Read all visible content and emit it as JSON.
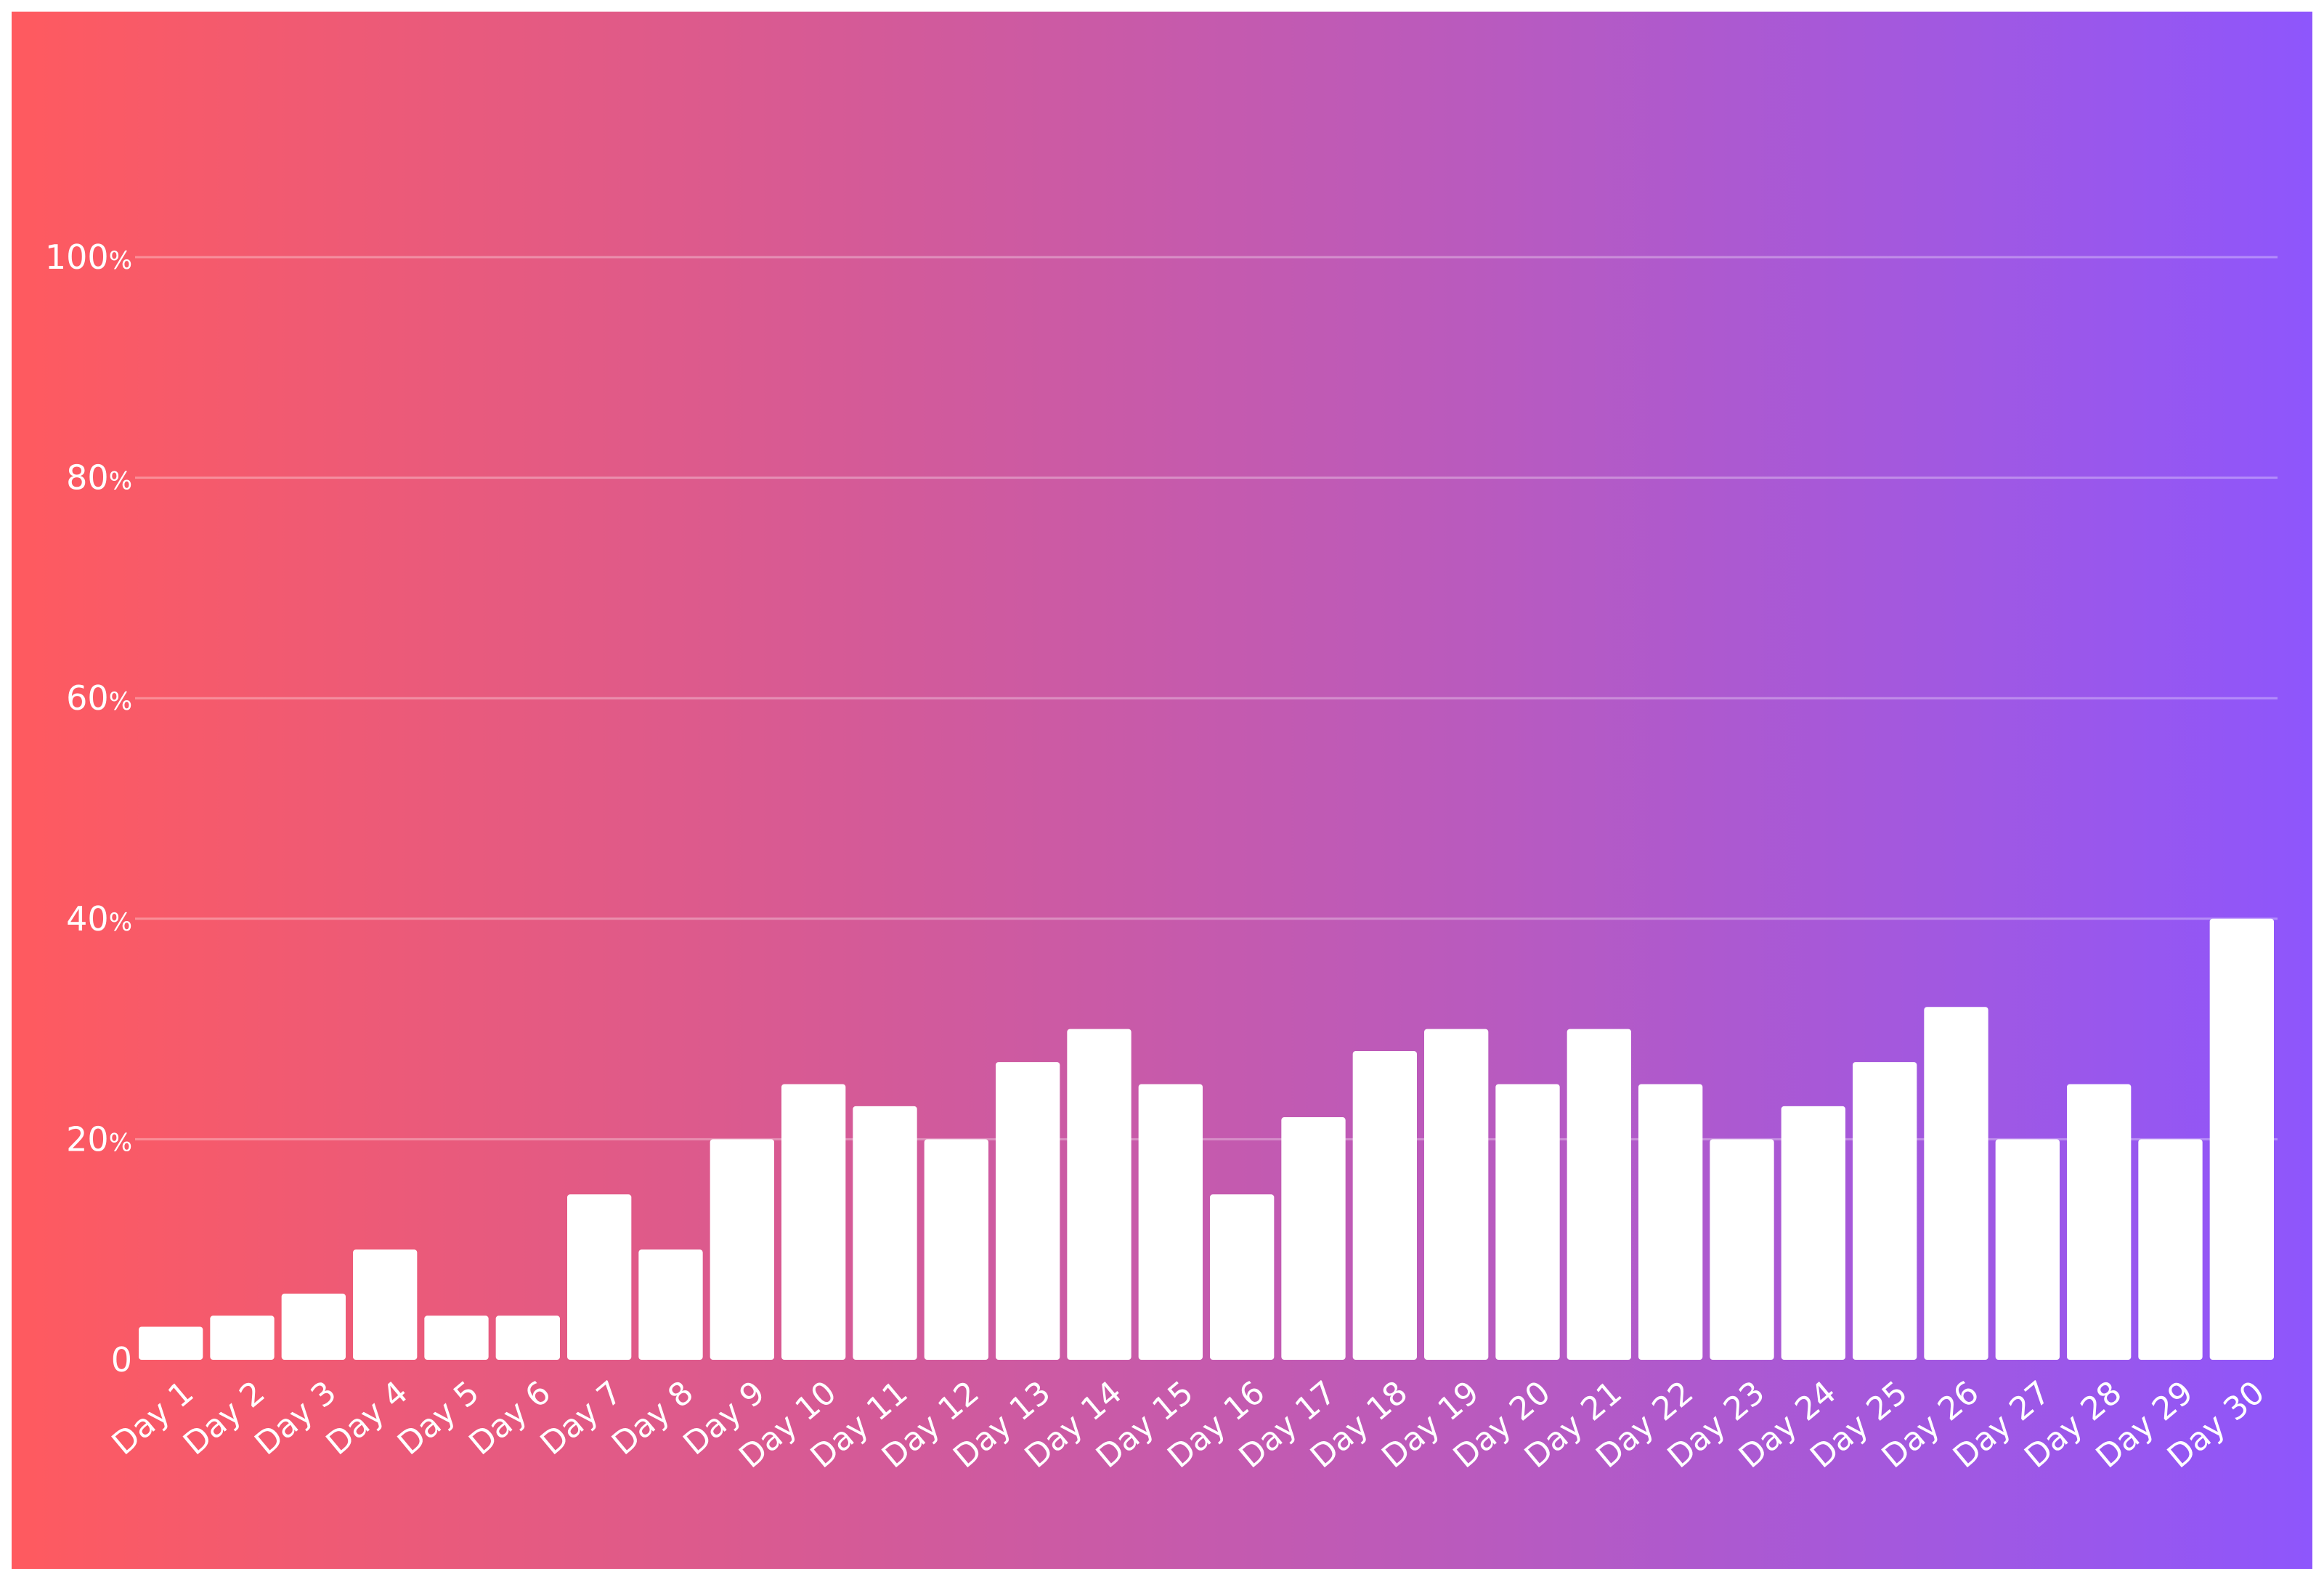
{
  "chart_data": {
    "type": "bar",
    "categories": [
      "Day 1",
      "Day 2",
      "Day 3",
      "Day 4",
      "Day 5",
      "Day 6",
      "Day 7",
      "Day 8",
      "Day 9",
      "Day 10",
      "Day 11",
      "Day 12",
      "Day 13",
      "Day 14",
      "Day 15",
      "Day 16",
      "Day 17",
      "Day 18",
      "Day 19",
      "Day 20",
      "Day 21",
      "Day 22",
      "Day 23",
      "Day 24",
      "Day 25",
      "Day 26",
      "Day 27",
      "Day 28",
      "Day 29",
      "Day 30"
    ],
    "values": [
      3,
      4,
      6,
      10,
      4,
      4,
      15,
      10,
      20,
      25,
      23,
      20,
      27,
      30,
      25,
      15,
      22,
      28,
      30,
      25,
      30,
      25,
      20,
      23,
      27,
      32,
      20,
      25,
      20,
      40
    ],
    "title": "",
    "xlabel": "",
    "ylabel": "",
    "ylim": [
      0,
      100
    ],
    "y_ticks": [
      {
        "value": 0,
        "num": "0",
        "unit": ""
      },
      {
        "value": 20,
        "num": "20",
        "unit": "%"
      },
      {
        "value": 40,
        "num": "40",
        "unit": "%"
      },
      {
        "value": 60,
        "num": "60",
        "unit": "%"
      },
      {
        "value": 80,
        "num": "80",
        "unit": "%"
      },
      {
        "value": 100,
        "num": "100",
        "unit": "%"
      }
    ],
    "grid": true,
    "legend": "none",
    "colors": {
      "bar": "#ffffff",
      "gradient_start": "#ff5a5f",
      "gradient_end": "#8e56fc"
    }
  }
}
